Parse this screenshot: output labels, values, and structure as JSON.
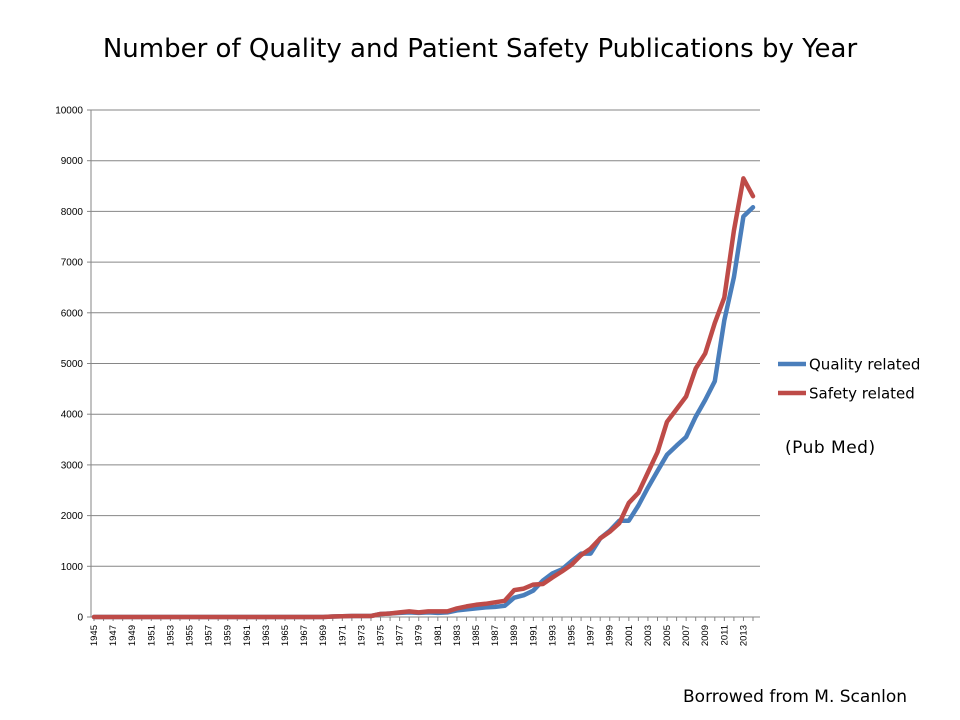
{
  "title": "Number of Quality and Patient Safety Publications by Year",
  "source_note": "(Pub Med)",
  "credit": "Borrowed from M. Scanlon",
  "chart_data": {
    "type": "line",
    "title": "Number of Quality and Patient Safety Publications by Year",
    "xlabel": "",
    "ylabel": "",
    "ylim": [
      0,
      10000
    ],
    "yticks": [
      0,
      1000,
      2000,
      3000,
      4000,
      5000,
      6000,
      7000,
      8000,
      9000,
      10000
    ],
    "grid": true,
    "legend": "right",
    "x": [
      1945,
      1946,
      1947,
      1948,
      1949,
      1950,
      1951,
      1952,
      1953,
      1954,
      1955,
      1956,
      1957,
      1958,
      1959,
      1960,
      1961,
      1962,
      1963,
      1964,
      1965,
      1966,
      1967,
      1968,
      1969,
      1970,
      1971,
      1972,
      1973,
      1974,
      1975,
      1976,
      1977,
      1978,
      1979,
      1980,
      1981,
      1982,
      1983,
      1984,
      1985,
      1986,
      1987,
      1988,
      1989,
      1990,
      1991,
      1992,
      1993,
      1994,
      1995,
      1996,
      1997,
      1998,
      1999,
      2000,
      2001,
      2002,
      2003,
      2004,
      2005,
      2006,
      2007,
      2008,
      2009,
      2010,
      2011,
      2012,
      2013,
      2014
    ],
    "xtick_labels": [
      "1945",
      "1947",
      "1949",
      "1951",
      "1953",
      "1955",
      "1957",
      "1959",
      "1961",
      "1963",
      "1965",
      "1967",
      "1969",
      "1971",
      "1973",
      "1975",
      "1977",
      "1979",
      "1981",
      "1983",
      "1985",
      "1987",
      "1989",
      "1991",
      "1993",
      "1995",
      "1997",
      "1999",
      "2001",
      "2003",
      "2005",
      "2007",
      "2009",
      "2011",
      "2013"
    ],
    "series": [
      {
        "name": "Quality related",
        "color": "#4a7ebb",
        "values": [
          0,
          0,
          0,
          0,
          0,
          0,
          0,
          0,
          0,
          0,
          0,
          0,
          0,
          0,
          0,
          0,
          0,
          0,
          0,
          0,
          0,
          0,
          0,
          0,
          0,
          10,
          15,
          20,
          20,
          20,
          60,
          70,
          80,
          90,
          80,
          90,
          80,
          90,
          130,
          150,
          170,
          190,
          200,
          220,
          380,
          430,
          520,
          720,
          860,
          940,
          1100,
          1250,
          1250,
          1550,
          1700,
          1900,
          1900,
          2200,
          2550,
          2880,
          3200,
          3380,
          3550,
          3950,
          4280,
          4650,
          5850,
          6700,
          7900,
          8080
        ]
      },
      {
        "name": "Safety related",
        "color": "#be4b48",
        "values": [
          0,
          0,
          0,
          0,
          0,
          0,
          0,
          0,
          0,
          0,
          0,
          0,
          0,
          0,
          0,
          0,
          0,
          0,
          0,
          0,
          0,
          0,
          0,
          0,
          0,
          10,
          15,
          20,
          20,
          20,
          60,
          70,
          90,
          110,
          90,
          110,
          110,
          110,
          170,
          210,
          240,
          260,
          290,
          320,
          530,
          560,
          640,
          650,
          780,
          900,
          1030,
          1220,
          1350,
          1550,
          1680,
          1850,
          2250,
          2450,
          2850,
          3250,
          3850,
          4100,
          4350,
          4900,
          5200,
          5800,
          6300,
          7620,
          8650,
          8300
        ]
      }
    ]
  }
}
